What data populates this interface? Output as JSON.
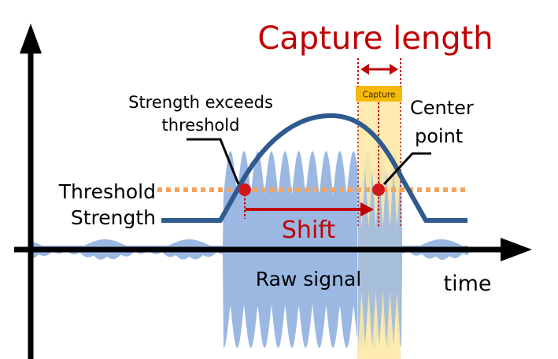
{
  "labels": {
    "capture_length": "Capture length",
    "capture_tag": "Capture",
    "strength_exceeds": "Strength exceeds",
    "threshold_word": "threshold",
    "center_line1": "Center",
    "center_line2": "point",
    "threshold": "Threshold",
    "strength": "Strength",
    "shift": "Shift",
    "raw_signal": "Raw signal",
    "time": "time"
  },
  "colors": {
    "raw_signal": "#9ab8e2",
    "capture_window": "#fde9a8",
    "capture_tag": "#f5b90b",
    "strength_curve": "#2f5a8f",
    "threshold_line": "#f4a460",
    "accent_red": "#c00000",
    "marker": "#d11818",
    "axis": "#000000"
  }
}
